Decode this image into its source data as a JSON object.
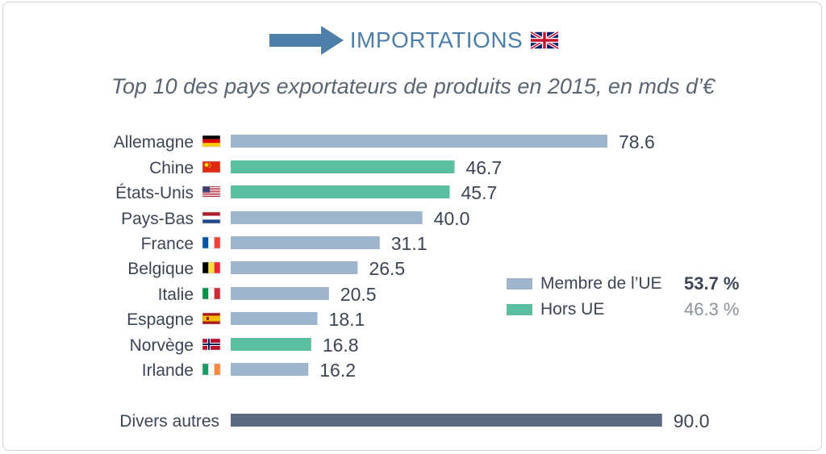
{
  "header": {
    "title": "IMPORTATIONS",
    "arrow_icon": "right-arrow-icon",
    "flag_icon": "uk-flag-icon"
  },
  "subtitle": "Top 10 des pays exportateurs de produits en 2015, en mds d’€",
  "legend": {
    "items": [
      {
        "label": "Membre de l’UE",
        "pct": "53.7 %",
        "color": "#9fb5cc",
        "pct_color": "#3b4556",
        "pct_bold": true
      },
      {
        "label": "Hors UE",
        "pct": "46.3 %",
        "color": "#5cbfa1",
        "pct_color": "#8b939e",
        "pct_bold": false
      }
    ]
  },
  "colors": {
    "eu": "#9fb5cc",
    "non_eu": "#5cbfa1",
    "other": "#5b6a80",
    "label": "#3b4556",
    "value": "#3b4556"
  },
  "chart_data": {
    "type": "bar",
    "orientation": "horizontal",
    "title": "Top 10 des pays exportateurs de produits en 2015, en mds d’€",
    "categories": [
      "Allemagne",
      "Chine",
      "États-Unis",
      "Pays-Bas",
      "France",
      "Belgique",
      "Italie",
      "Espagne",
      "Norvège",
      "Irlande",
      "Divers autres"
    ],
    "values": [
      78.6,
      46.7,
      45.7,
      40.0,
      31.1,
      26.5,
      20.5,
      18.1,
      16.8,
      16.2,
      90.0
    ],
    "value_labels": [
      "78.6",
      "46.7",
      "45.7",
      "40.0",
      "31.1",
      "26.5",
      "20.5",
      "18.1",
      "16.8",
      "16.2",
      "90.0"
    ],
    "groups": [
      "eu",
      "non_eu",
      "non_eu",
      "eu",
      "eu",
      "eu",
      "eu",
      "eu",
      "non_eu",
      "eu",
      "other"
    ],
    "flags": [
      "germany-flag-icon",
      "china-flag-icon",
      "usa-flag-icon",
      "netherlands-flag-icon",
      "france-flag-icon",
      "belgium-flag-icon",
      "italy-flag-icon",
      "spain-flag-icon",
      "norway-flag-icon",
      "ireland-flag-icon",
      null
    ],
    "xlim": [
      0,
      90
    ]
  }
}
